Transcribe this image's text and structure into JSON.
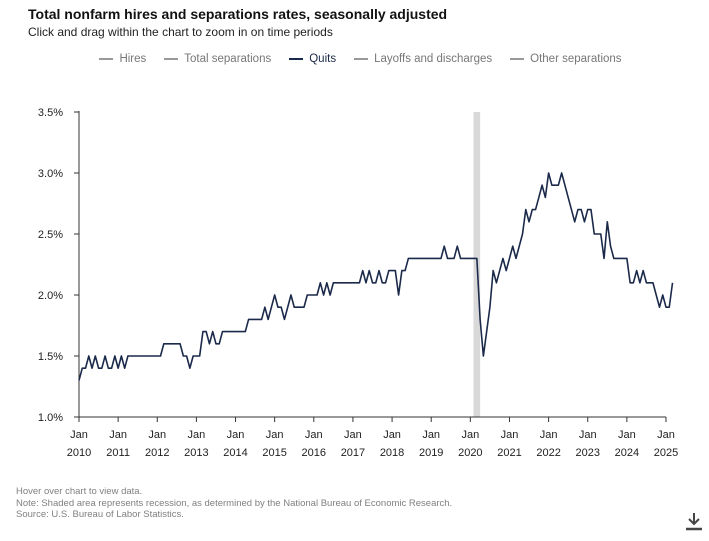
{
  "title": "Total nonfarm hires and separations rates, seasonally adjusted",
  "subtitle": "Click and drag within the chart to zoom in on time periods",
  "legend": [
    {
      "label": "Hires",
      "active": false
    },
    {
      "label": "Total separations",
      "active": false
    },
    {
      "label": "Quits",
      "active": true
    },
    {
      "label": "Layoffs and discharges",
      "active": false
    },
    {
      "label": "Other separations",
      "active": false
    }
  ],
  "notes": {
    "hover": "Hover over chart to view data.",
    "note": "Note: Shaded area represents recession, as determined by the National Bureau of Economic Research.",
    "source": "Source: U.S. Bureau of Labor Statistics."
  },
  "colors": {
    "series": "#1b2a4a",
    "recession": "#d9d9d9",
    "axis": "#333333",
    "inactive": "#999999"
  },
  "chart_data": {
    "type": "line",
    "title": "Total nonfarm hires and separations rates, seasonally adjusted",
    "xlabel": "",
    "ylabel": "",
    "ylim": [
      1.0,
      3.5
    ],
    "yticks": [
      1.0,
      1.5,
      2.0,
      2.5,
      3.0,
      3.5
    ],
    "ytick_labels": [
      "1.0%",
      "1.5%",
      "2.0%",
      "2.5%",
      "3.0%",
      "3.5%"
    ],
    "xlim": [
      2010.0,
      2025.0
    ],
    "xticks": [
      {
        "month": "Jan",
        "year": "2010",
        "x": 2010
      },
      {
        "month": "Jan",
        "year": "2011",
        "x": 2011
      },
      {
        "month": "Jan",
        "year": "2012",
        "x": 2012
      },
      {
        "month": "Jan",
        "year": "2013",
        "x": 2013
      },
      {
        "month": "Jan",
        "year": "2014",
        "x": 2014
      },
      {
        "month": "Jan",
        "year": "2015",
        "x": 2015
      },
      {
        "month": "Jan",
        "year": "2016",
        "x": 2016
      },
      {
        "month": "Jan",
        "year": "2017",
        "x": 2017
      },
      {
        "month": "Jan",
        "year": "2018",
        "x": 2018
      },
      {
        "month": "Jan",
        "year": "2019",
        "x": 2019
      },
      {
        "month": "Jan",
        "year": "2020",
        "x": 2020
      },
      {
        "month": "Jan",
        "year": "2021",
        "x": 2021
      },
      {
        "month": "Jan",
        "year": "2022",
        "x": 2022
      },
      {
        "month": "Jan",
        "year": "2023",
        "x": 2023
      },
      {
        "month": "Jan",
        "year": "2024",
        "x": 2024
      },
      {
        "month": "Jan",
        "year": "2025",
        "x": 2025
      }
    ],
    "recession": [
      2020.08,
      2020.25
    ],
    "grid": false,
    "series": [
      {
        "name": "Quits",
        "start": 2010.0,
        "step_months": 1,
        "values": [
          1.3,
          1.4,
          1.4,
          1.5,
          1.4,
          1.5,
          1.4,
          1.4,
          1.5,
          1.4,
          1.4,
          1.5,
          1.4,
          1.5,
          1.4,
          1.5,
          1.5,
          1.5,
          1.5,
          1.5,
          1.5,
          1.5,
          1.5,
          1.5,
          1.5,
          1.5,
          1.6,
          1.6,
          1.6,
          1.6,
          1.6,
          1.6,
          1.5,
          1.5,
          1.4,
          1.5,
          1.5,
          1.5,
          1.7,
          1.7,
          1.6,
          1.7,
          1.6,
          1.6,
          1.7,
          1.7,
          1.7,
          1.7,
          1.7,
          1.7,
          1.7,
          1.7,
          1.8,
          1.8,
          1.8,
          1.8,
          1.8,
          1.9,
          1.8,
          1.9,
          2.0,
          1.9,
          1.9,
          1.8,
          1.9,
          2.0,
          1.9,
          1.9,
          1.9,
          1.9,
          2.0,
          2.0,
          2.0,
          2.0,
          2.1,
          2.0,
          2.1,
          2.0,
          2.1,
          2.1,
          2.1,
          2.1,
          2.1,
          2.1,
          2.1,
          2.1,
          2.1,
          2.2,
          2.1,
          2.2,
          2.1,
          2.1,
          2.2,
          2.1,
          2.1,
          2.2,
          2.2,
          2.2,
          2.0,
          2.2,
          2.2,
          2.3,
          2.3,
          2.3,
          2.3,
          2.3,
          2.3,
          2.3,
          2.3,
          2.3,
          2.3,
          2.3,
          2.4,
          2.3,
          2.3,
          2.3,
          2.4,
          2.3,
          2.3,
          2.3,
          2.3,
          2.3,
          2.3,
          1.8,
          1.5,
          1.7,
          1.9,
          2.2,
          2.1,
          2.2,
          2.3,
          2.2,
          2.3,
          2.4,
          2.3,
          2.4,
          2.5,
          2.7,
          2.6,
          2.7,
          2.7,
          2.8,
          2.9,
          2.8,
          3.0,
          2.9,
          2.9,
          2.9,
          3.0,
          2.9,
          2.8,
          2.7,
          2.6,
          2.7,
          2.7,
          2.6,
          2.7,
          2.7,
          2.5,
          2.5,
          2.5,
          2.3,
          2.6,
          2.4,
          2.3,
          2.3,
          2.3,
          2.3,
          2.3,
          2.1,
          2.1,
          2.2,
          2.1,
          2.2,
          2.1,
          2.1,
          2.1,
          2.0,
          1.9,
          2.0,
          1.9,
          1.9,
          2.1
        ]
      }
    ]
  }
}
